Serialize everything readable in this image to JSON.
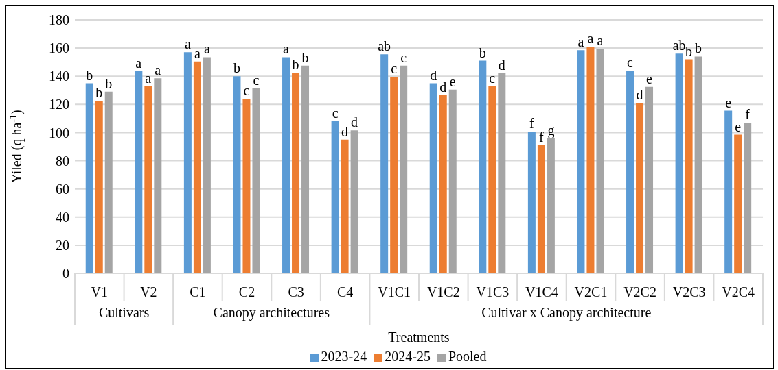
{
  "chart_data": {
    "type": "bar",
    "xlabel": "Treatments",
    "ylabel": "Yiled (q ha$^{-1}$)",
    "categories": [
      "V1",
      "V2",
      "C1",
      "C2",
      "C3",
      "C4",
      "V1C1",
      "V1C2",
      "V1C3",
      "V1C4",
      "V2C1",
      "V2C2",
      "V2C3",
      "V2C4"
    ],
    "series": [
      {
        "name": "2023-24",
        "color": "#5b9bd5",
        "values": [
          135,
          143.5,
          157,
          140,
          153.5,
          108,
          155.5,
          135,
          151,
          100.5,
          158.5,
          144,
          156,
          115.5
        ],
        "value_labels": [
          "b",
          "a",
          "a",
          "b",
          "a",
          "c",
          "ab",
          "d",
          "b",
          "f",
          "a",
          "c",
          "ab",
          "e"
        ]
      },
      {
        "name": "2024-25",
        "color": "#ed7d31",
        "values": [
          122.5,
          133,
          150.5,
          124,
          142.5,
          95,
          139.5,
          126.5,
          133,
          91,
          161,
          121,
          152,
          98.5
        ],
        "value_labels": [
          "b",
          "a",
          "a",
          "c",
          "b",
          "d",
          "c",
          "d",
          "c",
          "f",
          "a",
          "d",
          "b",
          "e"
        ]
      },
      {
        "name": "Pooled",
        "color": "#a5a5a5",
        "values": [
          129,
          138.5,
          153.5,
          131.5,
          147.5,
          101.5,
          147.5,
          130.5,
          142,
          96,
          159.5,
          132.5,
          154,
          107
        ],
        "value_labels": [
          "b",
          "a",
          "a",
          "c",
          "b",
          "d",
          "c",
          "e",
          "d",
          "g",
          "a",
          "e",
          "b",
          "f"
        ]
      }
    ],
    "annotations": [
      "Cultivars",
      "Canopy architectures",
      "Cultivar x Canopy architecture"
    ],
    "ylim": [
      0,
      180
    ],
    "yticks": [
      0,
      20,
      40,
      60,
      80,
      100,
      120,
      140,
      160,
      180
    ],
    "grid": "y",
    "legend": "bottom"
  }
}
